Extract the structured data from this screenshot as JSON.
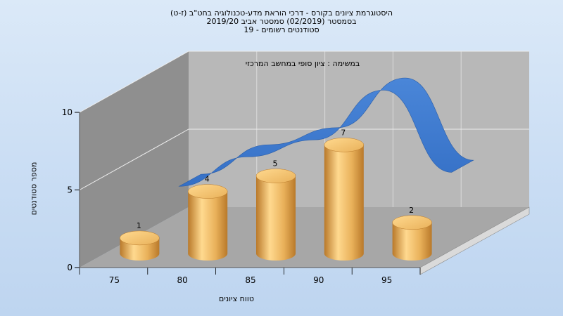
{
  "title": {
    "line1": "היסטוגרמת ציונים בקורס - דרכי הוראת מדע-טכנולוגיה בחט\"ב (ז-ט)",
    "line2": "בסמסטר  (02/2019)  סמסטר אביב 2019/20",
    "line3": "סטודנטים רשומים - 19"
  },
  "chart_data": {
    "type": "bar",
    "subtitle": "במשימה : ציון סופי במחשב המרכזי",
    "xlabel": "טווח ציונים",
    "ylabel": "מספר סטודנטים",
    "categories": [
      "75",
      "80",
      "85",
      "90",
      "95"
    ],
    "ylim": [
      0,
      10
    ],
    "yticks": [
      "0",
      "5",
      "10"
    ],
    "grid": true,
    "series": [
      {
        "values": [
          1,
          4,
          5,
          7,
          2
        ]
      }
    ],
    "trend_line": [
      3.6,
      5.5,
      6.6,
      9.8,
      4.5
    ],
    "colors": {
      "bar": "#e9b15a",
      "bar_dark": "#b9792a",
      "bar_light": "#ffd98f",
      "trend": "#3570c6",
      "wall_back": "#b8b8b8",
      "wall_left": "#8f8f8f",
      "floor": "#a7a7a7"
    }
  }
}
